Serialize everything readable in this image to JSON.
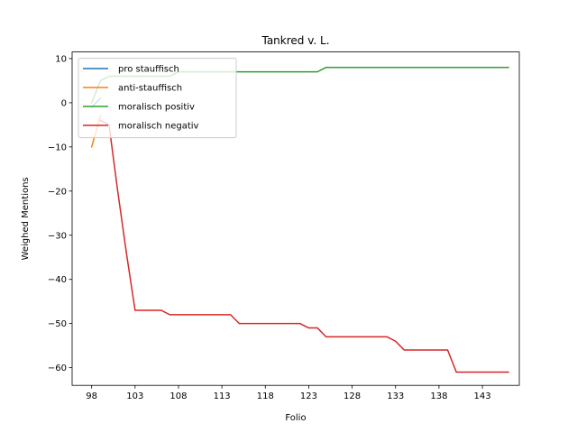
{
  "chart_data": {
    "type": "line",
    "title": "Tankred v. L.",
    "xlabel": "Folio",
    "ylabel": "Weighed Mentions",
    "xlim": [
      95.75,
      147.25
    ],
    "ylim": [
      -64.0,
      11.5
    ],
    "xticks": [
      98,
      103,
      108,
      113,
      118,
      123,
      128,
      133,
      138,
      143
    ],
    "yticks": [
      10,
      0,
      -10,
      -20,
      -30,
      -40,
      -50,
      -60
    ],
    "ytick_labels": [
      "10",
      "0",
      "−10",
      "−20",
      "−30",
      "−40",
      "−50",
      "−60"
    ],
    "grid": false,
    "legend_position": "top-left",
    "series": [
      {
        "name": "pro stauffisch",
        "color": "#1f77b4",
        "x": [
          98,
          99
        ],
        "y": [
          -1,
          1
        ]
      },
      {
        "name": "anti-stauffisch",
        "color": "#ff7f0e",
        "x": [
          98,
          99
        ],
        "y": [
          -10,
          -3
        ]
      },
      {
        "name": "moralisch positiv",
        "color": "#2ca02c",
        "x": [
          98,
          99,
          100,
          101,
          102,
          103,
          104,
          105,
          106,
          107,
          108,
          109,
          110,
          111,
          112,
          113,
          114,
          115,
          116,
          117,
          118,
          119,
          120,
          121,
          122,
          123,
          124,
          125,
          126,
          127,
          128,
          129,
          130,
          131,
          132,
          133,
          134,
          135,
          136,
          137,
          138,
          139,
          140,
          141,
          142,
          143,
          144,
          145,
          146
        ],
        "y": [
          0,
          5,
          6,
          6,
          6,
          6,
          6,
          6,
          6,
          6,
          7,
          7,
          7,
          7,
          7,
          7,
          7,
          7,
          7,
          7,
          7,
          7,
          7,
          7,
          7,
          7,
          7,
          8,
          8,
          8,
          8,
          8,
          8,
          8,
          8,
          8,
          8,
          8,
          8,
          8,
          8,
          8,
          8,
          8,
          8,
          8,
          8,
          8,
          8
        ]
      },
      {
        "name": "moralisch negativ",
        "color": "#d62728",
        "x": [
          99,
          100,
          101,
          102,
          103,
          104,
          105,
          106,
          107,
          108,
          109,
          110,
          111,
          112,
          113,
          114,
          115,
          116,
          117,
          118,
          119,
          120,
          121,
          122,
          123,
          124,
          125,
          126,
          127,
          128,
          129,
          130,
          131,
          132,
          133,
          134,
          135,
          136,
          137,
          138,
          139,
          140,
          141,
          142,
          143,
          144,
          145,
          146
        ],
        "y": [
          -4,
          -5,
          -20,
          -34,
          -47,
          -47,
          -47,
          -47,
          -48,
          -48,
          -48,
          -48,
          -48,
          -48,
          -48,
          -48,
          -50,
          -50,
          -50,
          -50,
          -50,
          -50,
          -50,
          -50,
          -51,
          -51,
          -53,
          -53,
          -53,
          -53,
          -53,
          -53,
          -53,
          -53,
          -54,
          -56,
          -56,
          -56,
          -56,
          -56,
          -56,
          -61,
          -61,
          -61,
          -61,
          -61,
          -61,
          -61
        ]
      }
    ]
  }
}
